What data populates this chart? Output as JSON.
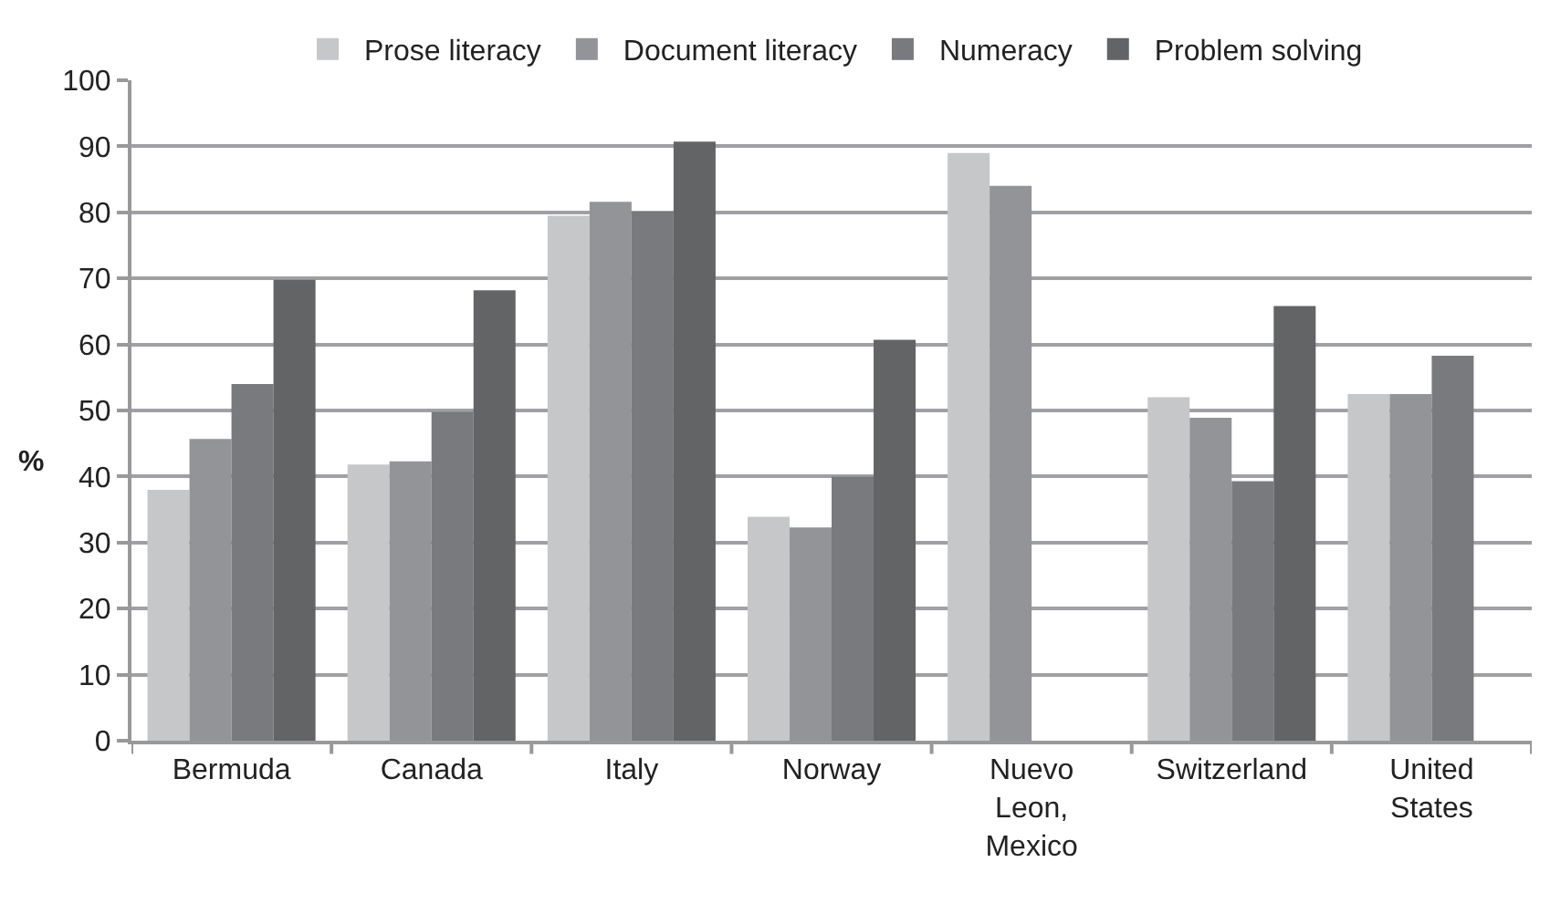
{
  "chart_data": {
    "type": "bar",
    "ylabel": "%",
    "categories": [
      "Bermuda",
      "Canada",
      "Italy",
      "Norway",
      "Nuevo Leon, Mexico",
      "Switzerland",
      "United States"
    ],
    "series": [
      {
        "name": "Prose literacy",
        "color": "#c6c7c9",
        "values": [
          38,
          41.8,
          79.5,
          33.9,
          89,
          52,
          52.5
        ]
      },
      {
        "name": "Document literacy",
        "color": "#939497",
        "values": [
          45.7,
          42.3,
          81.6,
          32.3,
          84,
          48.9,
          52.5
        ]
      },
      {
        "name": "Numeracy",
        "color": "#797a7e",
        "values": [
          54,
          49.8,
          80.1,
          40,
          null,
          39.3,
          58.3
        ]
      },
      {
        "name": "Problem solving",
        "color": "#636466",
        "values": [
          69.8,
          68.2,
          90.7,
          60.7,
          null,
          65.8,
          null
        ]
      }
    ],
    "ylim": [
      0,
      100
    ],
    "yticks": [
      0,
      10,
      20,
      30,
      40,
      50,
      60,
      70,
      80,
      90,
      100
    ],
    "grid": "y",
    "legend": "top"
  }
}
